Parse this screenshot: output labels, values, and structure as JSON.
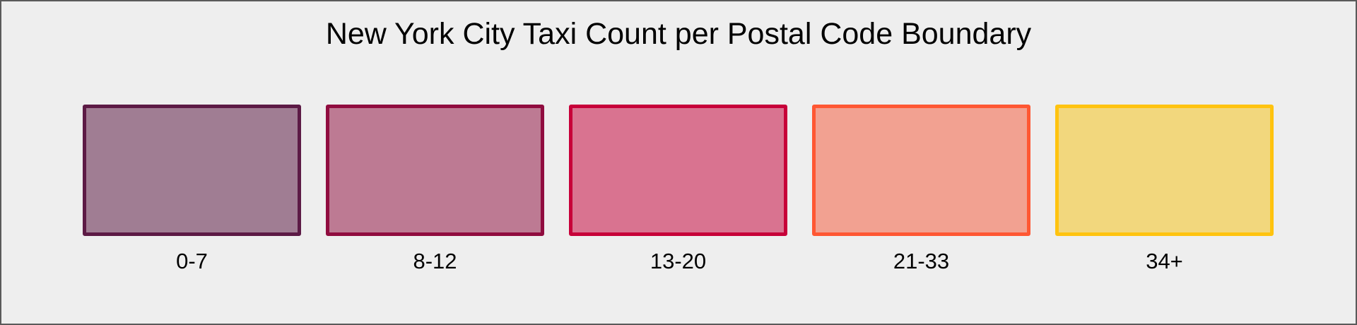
{
  "title": "New York City Taxi Count per Postal Code Boundary",
  "legend": [
    {
      "label": "0-7",
      "stroke": "#5c1a45",
      "fill": "#a07d93"
    },
    {
      "label": "8-12",
      "stroke": "#900c3f",
      "fill": "#bd7a93"
    },
    {
      "label": "13-20",
      "stroke": "#c70039",
      "fill": "#d97390"
    },
    {
      "label": "21-33",
      "stroke": "#ff5733",
      "fill": "#f2a191"
    },
    {
      "label": "34+",
      "stroke": "#ffc30f",
      "fill": "#f2d77d"
    }
  ]
}
